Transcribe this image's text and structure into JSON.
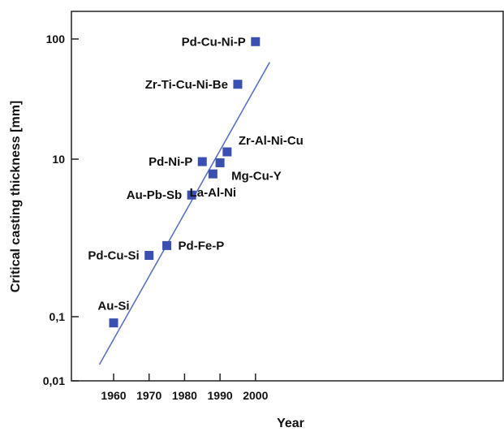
{
  "chart_data": {
    "type": "scatter",
    "title": "",
    "xlabel": "Year",
    "ylabel": "Critical casting thickness [mm]",
    "y_scale": "log",
    "xlim": [
      1955,
      2004
    ],
    "ylim": [
      0.01,
      150
    ],
    "x_ticks": [
      {
        "value": 1960,
        "label": "1960"
      },
      {
        "value": 1970,
        "label": "1970"
      },
      {
        "value": 1980,
        "label": "1980"
      },
      {
        "value": 1990,
        "label": "1990"
      },
      {
        "value": 2000,
        "label": "2000"
      }
    ],
    "y_ticks": [
      {
        "value": 0.01,
        "label": "0,01"
      },
      {
        "value": 0.1,
        "label": "0,1"
      },
      {
        "value": 10,
        "label": "10"
      },
      {
        "value": 100,
        "label": "100"
      }
    ],
    "series": [
      {
        "color": "#3a4fb0",
        "marker": "square",
        "points": [
          {
            "x": 1960,
            "y": 0.08,
            "label": "Au-Si",
            "label_side": "above"
          },
          {
            "x": 1970,
            "y": 0.6,
            "label": "Pd-Cu-Si",
            "label_side": "left"
          },
          {
            "x": 1975,
            "y": 0.8,
            "label": "Pd-Fe-P",
            "label_side": "right"
          },
          {
            "x": 1982,
            "y": 3.5,
            "label": "Au-Pb-Sb",
            "label_side": "left"
          },
          {
            "x": 1985,
            "y": 9.3,
            "label": "Pd-Ni-P",
            "label_side": "left"
          },
          {
            "x": 1988,
            "y": 6.5,
            "label": "La-Al-Ni",
            "label_side": "below"
          },
          {
            "x": 1990,
            "y": 9.0,
            "label": "Mg-Cu-Y",
            "label_side": "below-right"
          },
          {
            "x": 1992,
            "y": 11.5,
            "label": "Zr-Al-Ni-Cu",
            "label_side": "above-right"
          },
          {
            "x": 1995,
            "y": 42,
            "label": "Zr-Ti-Cu-Ni-Be",
            "label_side": "left"
          },
          {
            "x": 2000,
            "y": 95,
            "label": "Pd-Cu-Ni-P",
            "label_side": "left"
          }
        ]
      }
    ],
    "trend_line": {
      "color": "#5c73c4",
      "x": [
        1956,
        2004
      ],
      "y": [
        0.018,
        64
      ]
    },
    "grid": false
  }
}
